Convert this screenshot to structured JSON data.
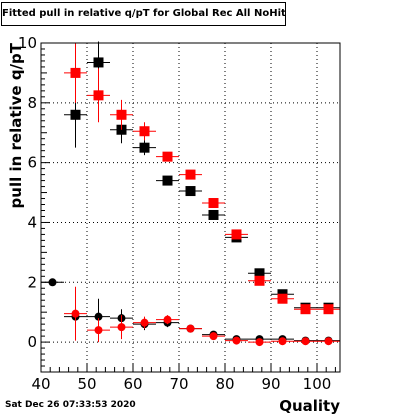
{
  "title": "Fitted pull in relative q/pT for Global Rec All NoHits",
  "timestamp": "Sat Dec 26 07:33:53 2020",
  "chart_data": {
    "type": "scatter",
    "title": "Fitted pull in relative q/pT for Global Rec All NoHits",
    "xlabel": "Quality",
    "ylabel": "pull in relative q/pT",
    "xlim": [
      40,
      105
    ],
    "ylim": [
      -1,
      10
    ],
    "xticks": [
      40,
      50,
      60,
      70,
      80,
      90,
      100
    ],
    "yticks": [
      0,
      2,
      4,
      6,
      8,
      10
    ],
    "grid": true,
    "legend": "none",
    "series": [
      {
        "color": "#000000",
        "marker": "square",
        "points": [
          {
            "x": 47.5,
            "y": 7.6,
            "yerr": 1.1
          },
          {
            "x": 52.5,
            "y": 9.35,
            "yerr": 0.7
          },
          {
            "x": 57.5,
            "y": 7.1,
            "yerr": 0.45
          },
          {
            "x": 62.5,
            "y": 6.5,
            "yerr": 0.25
          },
          {
            "x": 67.5,
            "y": 5.4,
            "yerr": 0.1
          },
          {
            "x": 72.5,
            "y": 5.05,
            "yerr": 0.1
          },
          {
            "x": 77.5,
            "y": 4.25,
            "yerr": 0.1
          },
          {
            "x": 82.5,
            "y": 3.5,
            "yerr": 0.1
          },
          {
            "x": 87.5,
            "y": 2.3,
            "yerr": 0.1
          },
          {
            "x": 92.5,
            "y": 1.6,
            "yerr": 0.1
          },
          {
            "x": 97.5,
            "y": 1.15,
            "yerr": 0.1
          },
          {
            "x": 102.5,
            "y": 1.15,
            "yerr": 0.1
          }
        ]
      },
      {
        "color": "#ff0000",
        "marker": "square",
        "points": [
          {
            "x": 47.5,
            "y": 9.0,
            "yerr": 1.0
          },
          {
            "x": 52.5,
            "y": 8.25,
            "yerr": 0.9
          },
          {
            "x": 57.5,
            "y": 7.6,
            "yerr": 0.5
          },
          {
            "x": 62.5,
            "y": 7.05,
            "yerr": 0.3
          },
          {
            "x": 67.5,
            "y": 6.2,
            "yerr": 0.15
          },
          {
            "x": 72.5,
            "y": 5.6,
            "yerr": 0.1
          },
          {
            "x": 77.5,
            "y": 4.65,
            "yerr": 0.1
          },
          {
            "x": 82.5,
            "y": 3.6,
            "yerr": 0.1
          },
          {
            "x": 87.5,
            "y": 2.05,
            "yerr": 0.1
          },
          {
            "x": 92.5,
            "y": 1.45,
            "yerr": 0.1
          },
          {
            "x": 97.5,
            "y": 1.1,
            "yerr": 0.1
          },
          {
            "x": 102.5,
            "y": 1.1,
            "yerr": 0.1
          }
        ]
      },
      {
        "color": "#000000",
        "marker": "circle",
        "points": [
          {
            "x": 42.5,
            "y": 2.0,
            "yerr": 0.0
          },
          {
            "x": 47.5,
            "y": 0.85,
            "yerr": 0.3
          },
          {
            "x": 52.5,
            "y": 0.85,
            "yerr": 0.6
          },
          {
            "x": 57.5,
            "y": 0.8,
            "yerr": 0.3
          },
          {
            "x": 62.5,
            "y": 0.6,
            "yerr": 0.2
          },
          {
            "x": 67.5,
            "y": 0.65,
            "yerr": 0.15
          },
          {
            "x": 72.5,
            "y": 0.45,
            "yerr": 0.1
          },
          {
            "x": 77.5,
            "y": 0.25,
            "yerr": 0.1
          },
          {
            "x": 82.5,
            "y": 0.1,
            "yerr": 0.05
          },
          {
            "x": 87.5,
            "y": 0.1,
            "yerr": 0.05
          },
          {
            "x": 92.5,
            "y": 0.1,
            "yerr": 0.05
          },
          {
            "x": 97.5,
            "y": 0.05,
            "yerr": 0.05
          },
          {
            "x": 102.5,
            "y": 0.05,
            "yerr": 0.05
          }
        ]
      },
      {
        "color": "#ff0000",
        "marker": "circle",
        "points": [
          {
            "x": 47.5,
            "y": 0.95,
            "yerr": 0.9
          },
          {
            "x": 52.5,
            "y": 0.4,
            "yerr": 0.4
          },
          {
            "x": 57.5,
            "y": 0.5,
            "yerr": 0.4
          },
          {
            "x": 62.5,
            "y": 0.65,
            "yerr": 0.2
          },
          {
            "x": 67.5,
            "y": 0.75,
            "yerr": 0.15
          },
          {
            "x": 72.5,
            "y": 0.45,
            "yerr": 0.1
          },
          {
            "x": 77.5,
            "y": 0.2,
            "yerr": 0.1
          },
          {
            "x": 82.5,
            "y": 0.05,
            "yerr": 0.05
          },
          {
            "x": 87.5,
            "y": 0.0,
            "yerr": 0.05
          },
          {
            "x": 92.5,
            "y": 0.03,
            "yerr": 0.05
          },
          {
            "x": 97.5,
            "y": 0.03,
            "yerr": 0.05
          },
          {
            "x": 102.5,
            "y": 0.03,
            "yerr": 0.05
          }
        ]
      }
    ]
  }
}
